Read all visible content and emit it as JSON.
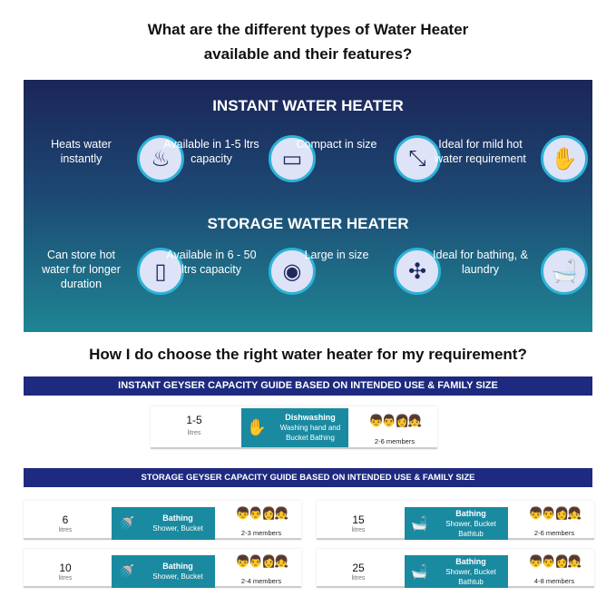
{
  "title_lines": [
    "What are the different types of Water Heater",
    "available and their features?"
  ],
  "instant": {
    "heading": "INSTANT WATER HEATER",
    "features": [
      {
        "text": "Heats water instantly",
        "icon": "heating-bowl-icon",
        "glyph": "♨"
      },
      {
        "text": "Available in 1-5 ltrs capacity",
        "icon": "geyser-icon",
        "glyph": "▭"
      },
      {
        "text": "Compact in size",
        "icon": "compress-arrows-icon",
        "glyph": "⤡"
      },
      {
        "text": "Ideal for mild hot water requirement",
        "icon": "washing-hands-icon",
        "glyph": "✋"
      }
    ]
  },
  "storage": {
    "heading": "STORAGE WATER HEATER",
    "features": [
      {
        "text": "Can store hot water for longer duration",
        "icon": "storage-tank-icon",
        "glyph": "▯"
      },
      {
        "text": "Available in 6 - 50 ltrs capacity",
        "icon": "storage-geyser-icon",
        "glyph": "◉"
      },
      {
        "text": "Large in size",
        "icon": "expand-arrows-icon",
        "glyph": "✣"
      },
      {
        "text": "Ideal for bathing, & laundry",
        "icon": "bathtub-icon",
        "glyph": "🛁"
      }
    ]
  },
  "question2": "How I do choose the right water heater for my requirement?",
  "instant_guide": {
    "heading": "INSTANT GEYSER CAPACITY GUIDE BASED ON INTENDED USE & FAMILY SIZE",
    "card": {
      "capacity": "1-5",
      "unit": "litres",
      "use_title": "Dishwashing",
      "use_desc": "Washing hand and Bucket Bathing",
      "members": "2-6 members"
    }
  },
  "storage_guide": {
    "heading": "STORAGE GEYSER CAPACITY GUIDE BASED ON INTENDED USE & FAMILY SIZE",
    "cards": [
      {
        "capacity": "6",
        "unit": "litres",
        "use_title": "Bathing",
        "use_desc": "Shower, Bucket",
        "members": "2-3 members"
      },
      {
        "capacity": "15",
        "unit": "litres",
        "use_title": "Bathing",
        "use_desc": "Shower, Bucket Bathtub",
        "members": "2-6 members"
      },
      {
        "capacity": "10",
        "unit": "litres",
        "use_title": "Bathing",
        "use_desc": "Shower, Bucket",
        "members": "2-4 members"
      },
      {
        "capacity": "25",
        "unit": "litres",
        "use_title": "Bathing",
        "use_desc": "Shower, Bucket Bathtub",
        "members": "4-8 members"
      }
    ]
  },
  "colors": {
    "band": "#1e2a7f",
    "use_box": "#1a8aa0",
    "ring": "#2bb3d8"
  }
}
